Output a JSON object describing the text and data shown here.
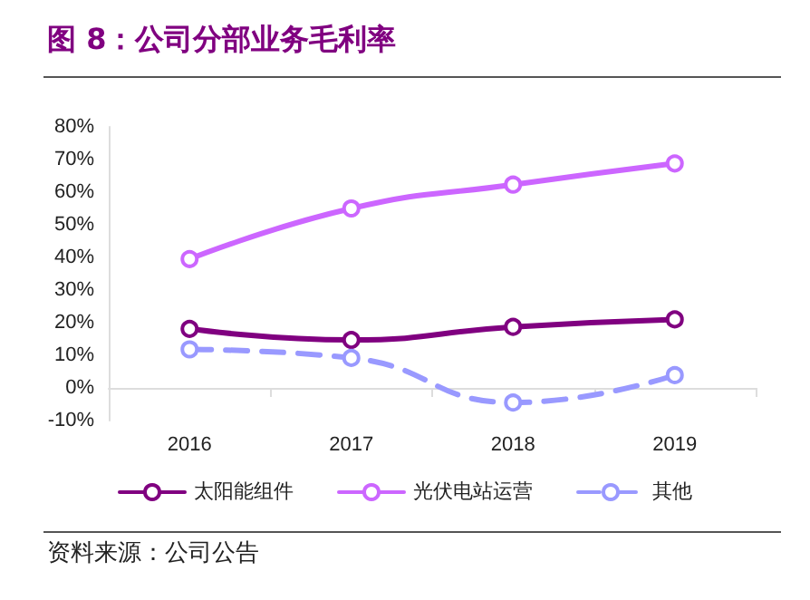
{
  "chart_data": {
    "type": "line",
    "title": "图 8：公司分部业务毛利率",
    "categories": [
      "2016",
      "2017",
      "2018",
      "2019"
    ],
    "series": [
      {
        "name": "太阳能组件",
        "color": "#800080",
        "values": [
          18.1,
          14.7,
          18.7,
          21.0
        ],
        "line_style": "solid"
      },
      {
        "name": "光伏电站运营",
        "color": "#cc66ff",
        "values": [
          39.5,
          55.0,
          62.3,
          68.8
        ],
        "line_style": "solid"
      },
      {
        "name": "其他",
        "color": "#9999ff",
        "values": [
          11.8,
          9.2,
          -4.5,
          3.9
        ],
        "line_style": "dashed"
      }
    ],
    "ylim": [
      -10,
      80
    ],
    "yticks": [
      {
        "value": -10,
        "label": "-10%"
      },
      {
        "value": 0,
        "label": "0%"
      },
      {
        "value": 10,
        "label": "10%"
      },
      {
        "value": 20,
        "label": "20%"
      },
      {
        "value": 30,
        "label": "30%"
      },
      {
        "value": 40,
        "label": "40%"
      },
      {
        "value": 50,
        "label": "50%"
      },
      {
        "value": 60,
        "label": "60%"
      },
      {
        "value": 70,
        "label": "70%"
      },
      {
        "value": 80,
        "label": "80%"
      }
    ],
    "grid": false,
    "legend": "bottom",
    "marker": "circle",
    "annotations": [
      "资料来源：公司公告"
    ]
  }
}
